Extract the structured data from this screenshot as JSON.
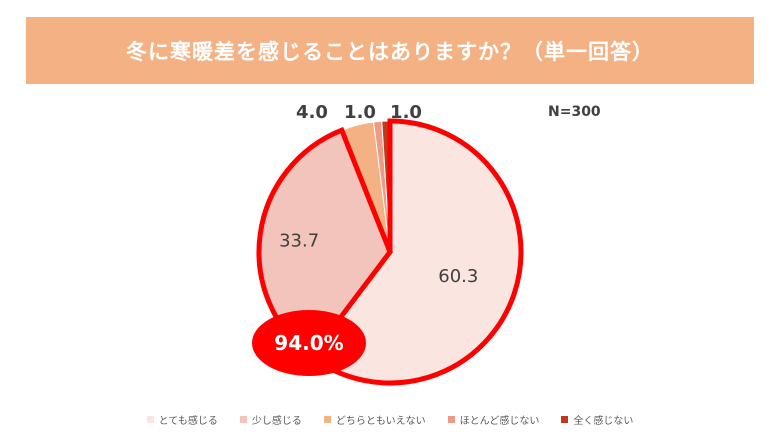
{
  "chart_data": {
    "type": "pie",
    "title": "冬に寒暖差を感じることはありますか？（単一回答）",
    "n_label": "N=300",
    "slices": [
      {
        "name": "とても感じる",
        "value": 60.3,
        "label": "60.3",
        "color": "#fbe5e1"
      },
      {
        "name": "少し感じる",
        "value": 33.7,
        "label": "33.7",
        "color": "#f2c4bc"
      },
      {
        "name": "どちらともいえない",
        "value": 4.0,
        "label": "4.0",
        "color": "#f4b183"
      },
      {
        "name": "ほとんど感じない",
        "value": 1.0,
        "label": "1.0",
        "color": "#ee9a86"
      },
      {
        "name": "全く感じない",
        "value": 1.0,
        "label": "1.0",
        "color": "#c0391b"
      }
    ],
    "highlight": {
      "label": "94.0%",
      "color": "#ff0000"
    },
    "legend_position": "bottom"
  }
}
